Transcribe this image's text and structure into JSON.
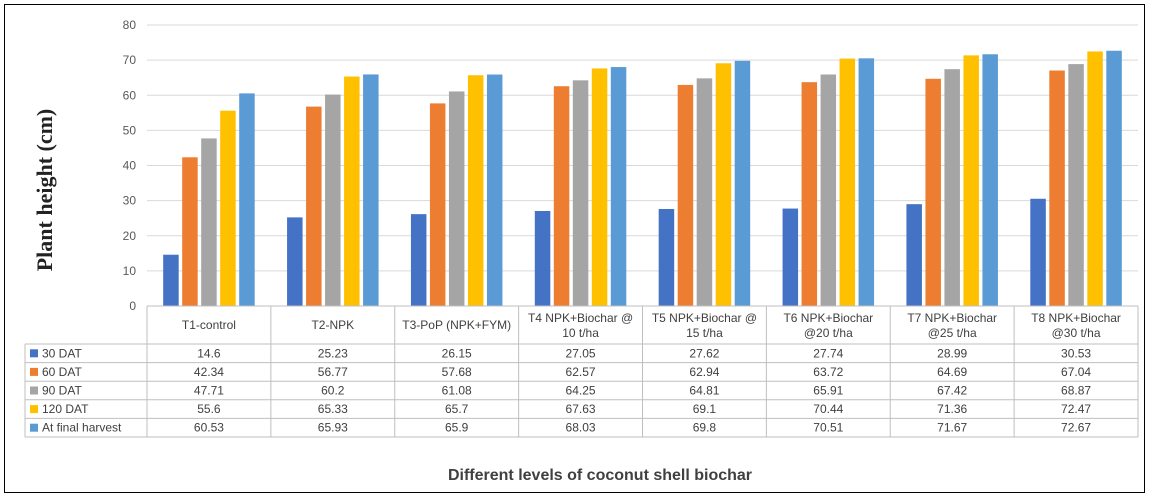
{
  "chart_data": {
    "type": "bar",
    "title": "",
    "xlabel": "Different levels of coconut shell biochar",
    "ylabel": "Plant height (cm)",
    "ylim": [
      0,
      80
    ],
    "yticks": [
      0,
      10,
      20,
      30,
      40,
      50,
      60,
      70,
      80
    ],
    "grid": true,
    "legend": "data table",
    "categories": [
      [
        "T1-control"
      ],
      [
        "T2-NPK"
      ],
      [
        "T3-PoP (NPK+FYM)"
      ],
      [
        "T4 NPK+Biochar @",
        "10 t/ha"
      ],
      [
        "T5 NPK+Biochar @",
        "15 t/ha"
      ],
      [
        "T6 NPK+Biochar",
        "@20 t/ha"
      ],
      [
        "T7 NPK+Biochar",
        "@25 t/ha"
      ],
      [
        "T8 NPK+Biochar",
        "@30 t/ha"
      ]
    ],
    "series": [
      {
        "name": "30 DAT",
        "color": "#4472C4",
        "values": [
          14.6,
          25.23,
          26.15,
          27.05,
          27.62,
          27.74,
          28.99,
          30.53
        ]
      },
      {
        "name": "60 DAT",
        "color": "#ED7D31",
        "values": [
          42.34,
          56.77,
          57.68,
          62.57,
          62.94,
          63.72,
          64.69,
          67.04
        ]
      },
      {
        "name": "90 DAT",
        "color": "#A5A5A5",
        "values": [
          47.71,
          60.2,
          61.08,
          64.25,
          64.81,
          65.91,
          67.42,
          68.87
        ]
      },
      {
        "name": "120 DAT",
        "color": "#FFC000",
        "values": [
          55.6,
          65.33,
          65.7,
          67.63,
          69.1,
          70.44,
          71.36,
          72.47
        ]
      },
      {
        "name": "At final harvest",
        "color": "#5B9BD5",
        "values": [
          60.53,
          65.93,
          65.9,
          68.03,
          69.8,
          70.51,
          71.67,
          72.67
        ]
      }
    ]
  }
}
